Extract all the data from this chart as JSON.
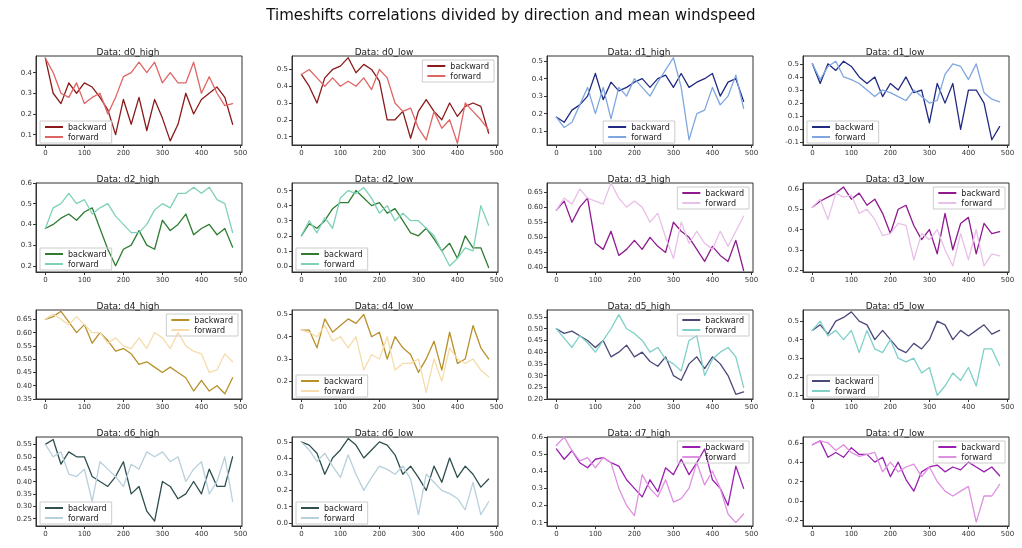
{
  "chart_data": [
    {
      "type": "line",
      "title": "Data: d0_high",
      "annotations": [
        "Timeshifts correlations divided by direction and mean windspeed"
      ],
      "legend": "bottom left",
      "grid": false,
      "x": [
        0,
        20,
        40,
        60,
        80,
        100,
        120,
        140,
        160,
        180,
        200,
        220,
        240,
        260,
        280,
        300,
        320,
        340,
        360,
        380,
        400,
        420,
        440,
        460,
        480
      ],
      "xlim": [
        -24,
        504
      ],
      "xticks": [
        0,
        100,
        200,
        300,
        400,
        500
      ],
      "ylim": [
        0.05,
        0.48
      ],
      "yticks": [
        0.1,
        0.2,
        0.3,
        0.4
      ],
      "series": [
        {
          "name": "backward",
          "color": "#8b1a1a",
          "values": [
            0.47,
            0.3,
            0.25,
            0.35,
            0.3,
            0.35,
            0.33,
            0.28,
            0.22,
            0.1,
            0.27,
            0.15,
            0.28,
            0.12,
            0.27,
            0.18,
            0.07,
            0.15,
            0.3,
            0.2,
            0.27,
            0.3,
            0.33,
            0.28,
            0.15
          ]
        },
        {
          "name": "forward",
          "color": "#e06666",
          "values": [
            0.47,
            0.4,
            0.3,
            0.28,
            0.35,
            0.25,
            0.28,
            0.3,
            0.2,
            0.28,
            0.38,
            0.4,
            0.45,
            0.4,
            0.45,
            0.35,
            0.4,
            0.35,
            0.35,
            0.45,
            0.3,
            0.38,
            0.3,
            0.24,
            0.25
          ]
        }
      ]
    },
    {
      "type": "line",
      "title": "Data: d0_low",
      "legend": "top right",
      "grid": false,
      "x": [
        0,
        20,
        40,
        60,
        80,
        100,
        120,
        140,
        160,
        180,
        200,
        220,
        240,
        260,
        280,
        300,
        320,
        340,
        360,
        380,
        400,
        420,
        440,
        460,
        480
      ],
      "xlim": [
        -24,
        504
      ],
      "xticks": [
        0,
        100,
        200,
        300,
        400,
        500
      ],
      "ylim": [
        0.05,
        0.58
      ],
      "yticks": [
        0.1,
        0.2,
        0.3,
        0.4,
        0.5
      ],
      "series": [
        {
          "name": "backward",
          "color": "#8b1a1a",
          "values": [
            0.47,
            0.4,
            0.3,
            0.45,
            0.5,
            0.52,
            0.57,
            0.48,
            0.53,
            0.5,
            0.43,
            0.2,
            0.2,
            0.25,
            0.09,
            0.25,
            0.32,
            0.25,
            0.2,
            0.3,
            0.22,
            0.28,
            0.3,
            0.28,
            0.12
          ]
        },
        {
          "name": "forward",
          "color": "#e06666",
          "values": [
            0.47,
            0.5,
            0.45,
            0.4,
            0.45,
            0.4,
            0.43,
            0.4,
            0.45,
            0.38,
            0.5,
            0.45,
            0.3,
            0.25,
            0.27,
            0.15,
            0.08,
            0.25,
            0.15,
            0.2,
            0.06,
            0.3,
            0.25,
            0.2,
            0.14
          ]
        }
      ]
    },
    {
      "type": "line",
      "title": "Data: d1_high",
      "legend": "bottom",
      "grid": false,
      "x": [
        0,
        20,
        40,
        60,
        80,
        100,
        120,
        140,
        160,
        180,
        200,
        220,
        240,
        260,
        280,
        300,
        320,
        340,
        360,
        380,
        400,
        420,
        440,
        460,
        480
      ],
      "xlim": [
        -24,
        504
      ],
      "xticks": [
        0,
        100,
        200,
        300,
        400,
        500
      ],
      "ylim": [
        0.02,
        0.53
      ],
      "yticks": [
        0.1,
        0.2,
        0.3,
        0.4,
        0.5
      ],
      "series": [
        {
          "name": "backward",
          "color": "#1f2a80",
          "values": [
            0.18,
            0.15,
            0.22,
            0.25,
            0.3,
            0.43,
            0.28,
            0.38,
            0.33,
            0.35,
            0.38,
            0.4,
            0.35,
            0.4,
            0.42,
            0.35,
            0.43,
            0.35,
            0.38,
            0.4,
            0.43,
            0.3,
            0.38,
            0.4,
            0.27
          ]
        },
        {
          "name": "forward",
          "color": "#7fa6e0",
          "values": [
            0.18,
            0.12,
            0.15,
            0.25,
            0.35,
            0.2,
            0.35,
            0.17,
            0.35,
            0.3,
            0.4,
            0.35,
            0.3,
            0.38,
            0.45,
            0.52,
            0.35,
            0.05,
            0.2,
            0.22,
            0.35,
            0.25,
            0.3,
            0.42,
            0.23
          ]
        }
      ]
    },
    {
      "type": "line",
      "title": "Data: d1_low",
      "legend": "bottom left",
      "grid": false,
      "x": [
        0,
        20,
        40,
        60,
        80,
        100,
        120,
        140,
        160,
        180,
        200,
        220,
        240,
        260,
        280,
        300,
        320,
        340,
        360,
        380,
        400,
        420,
        440,
        460,
        480
      ],
      "xlim": [
        -24,
        504
      ],
      "xticks": [
        0,
        100,
        200,
        300,
        400,
        500
      ],
      "ylim": [
        -0.12,
        0.56
      ],
      "yticks": [
        -0.1,
        {
          "value": 0,
          "label": "0.0"
        },
        0.1,
        0.2,
        0.3,
        0.4,
        0.5
      ],
      "series": [
        {
          "name": "backward",
          "color": "#1f2a80",
          "values": [
            0.5,
            0.35,
            0.5,
            0.45,
            0.52,
            0.48,
            0.4,
            0.35,
            0.4,
            0.25,
            0.35,
            0.3,
            0.4,
            0.28,
            0.3,
            0.05,
            0.35,
            0.2,
            0.35,
            0.0,
            0.3,
            0.3,
            0.2,
            -0.08,
            0.02
          ]
        },
        {
          "name": "forward",
          "color": "#7fa6e0",
          "values": [
            0.5,
            0.38,
            0.48,
            0.52,
            0.4,
            0.38,
            0.35,
            0.3,
            0.25,
            0.3,
            0.28,
            0.25,
            0.22,
            0.3,
            0.25,
            0.2,
            0.22,
            0.42,
            0.5,
            0.48,
            0.38,
            0.5,
            0.28,
            0.23,
            0.21
          ]
        }
      ]
    },
    {
      "type": "line",
      "title": "Data: d2_high",
      "legend": "bottom left",
      "grid": false,
      "x": [
        0,
        20,
        40,
        60,
        80,
        100,
        120,
        140,
        160,
        180,
        200,
        220,
        240,
        260,
        280,
        300,
        320,
        340,
        360,
        380,
        400,
        420,
        440,
        460,
        480
      ],
      "xlim": [
        -24,
        504
      ],
      "xticks": [
        0,
        100,
        200,
        300,
        400,
        500
      ],
      "ylim": [
        0.17,
        0.6
      ],
      "yticks": [
        0.2,
        0.3,
        0.4,
        0.5,
        0.6
      ],
      "series": [
        {
          "name": "backward",
          "color": "#2e7d32",
          "values": [
            0.38,
            0.4,
            0.43,
            0.45,
            0.42,
            0.46,
            0.48,
            0.38,
            0.28,
            0.2,
            0.28,
            0.3,
            0.37,
            0.3,
            0.28,
            0.42,
            0.37,
            0.4,
            0.45,
            0.35,
            0.38,
            0.4,
            0.35,
            0.38,
            0.29
          ]
        },
        {
          "name": "forward",
          "color": "#7fd1b9",
          "values": [
            0.38,
            0.48,
            0.5,
            0.55,
            0.5,
            0.52,
            0.45,
            0.48,
            0.5,
            0.44,
            0.4,
            0.36,
            0.36,
            0.4,
            0.47,
            0.5,
            0.48,
            0.55,
            0.55,
            0.58,
            0.55,
            0.58,
            0.52,
            0.5,
            0.36
          ]
        }
      ]
    },
    {
      "type": "line",
      "title": "Data: d2_low",
      "legend": "bottom left",
      "grid": false,
      "x": [
        0,
        20,
        40,
        60,
        80,
        100,
        120,
        140,
        160,
        180,
        200,
        220,
        240,
        260,
        280,
        300,
        320,
        340,
        360,
        380,
        400,
        420,
        440,
        460,
        480
      ],
      "xlim": [
        -24,
        504
      ],
      "xticks": [
        0,
        100,
        200,
        300,
        400,
        500
      ],
      "ylim": [
        -0.04,
        0.55
      ],
      "yticks": [
        {
          "value": 0,
          "label": "0.0"
        },
        0.1,
        0.2,
        0.3,
        0.4,
        0.5
      ],
      "series": [
        {
          "name": "backward",
          "color": "#2e7d32",
          "values": [
            0.2,
            0.28,
            0.25,
            0.3,
            0.38,
            0.42,
            0.42,
            0.5,
            0.45,
            0.4,
            0.42,
            0.35,
            0.38,
            0.3,
            0.22,
            0.2,
            0.25,
            0.18,
            0.1,
            0.15,
            0.05,
            0.2,
            0.12,
            0.12,
            -0.01
          ]
        },
        {
          "name": "forward",
          "color": "#7fd1b9",
          "values": [
            0.2,
            0.3,
            0.22,
            0.32,
            0.25,
            0.45,
            0.5,
            0.48,
            0.52,
            0.45,
            0.35,
            0.4,
            0.3,
            0.35,
            0.3,
            0.3,
            0.25,
            0.2,
            0.1,
            0.0,
            0.05,
            0.12,
            0.1,
            0.4,
            0.27
          ]
        }
      ]
    },
    {
      "type": "line",
      "title": "Data: d3_high",
      "legend": "top right",
      "grid": false,
      "x": [
        0,
        20,
        40,
        60,
        80,
        100,
        120,
        140,
        160,
        180,
        200,
        220,
        240,
        260,
        280,
        300,
        320,
        340,
        360,
        380,
        400,
        420,
        440,
        460,
        480
      ],
      "xlim": [
        -24,
        504
      ],
      "xticks": [
        0,
        100,
        200,
        300,
        400,
        500
      ],
      "ylim": [
        0.385,
        0.68
      ],
      "yticks": [
        {
          "value": 0.4,
          "label": "0.40"
        },
        {
          "value": 0.45,
          "label": "0.45"
        },
        {
          "value": 0.5,
          "label": "0.50"
        },
        {
          "value": 0.55,
          "label": "0.55"
        },
        {
          "value": 0.6,
          "label": "0.60"
        },
        {
          "value": 0.65,
          "label": "0.65"
        }
      ],
      "series": [
        {
          "name": "backward",
          "color": "#8e1a8e",
          "values": [
            0.59,
            0.62,
            0.55,
            0.6,
            0.63,
            0.48,
            0.46,
            0.52,
            0.44,
            0.46,
            0.49,
            0.46,
            0.5,
            0.47,
            0.45,
            0.55,
            0.52,
            0.5,
            0.46,
            0.42,
            0.47,
            0.44,
            0.42,
            0.49,
            0.39
          ]
        },
        {
          "name": "forward",
          "color": "#e8c0e8",
          "values": [
            0.59,
            0.63,
            0.61,
            0.66,
            0.63,
            0.62,
            0.61,
            0.68,
            0.63,
            0.6,
            0.62,
            0.6,
            0.55,
            0.58,
            0.5,
            0.43,
            0.55,
            0.48,
            0.52,
            0.48,
            0.46,
            0.52,
            0.47,
            0.52,
            0.57
          ]
        }
      ]
    },
    {
      "type": "line",
      "title": "Data: d3_low",
      "legend": "top right",
      "grid": false,
      "x": [
        0,
        20,
        40,
        60,
        80,
        100,
        120,
        140,
        160,
        180,
        200,
        220,
        240,
        260,
        280,
        300,
        320,
        340,
        360,
        380,
        400,
        420,
        440,
        460,
        480
      ],
      "xlim": [
        -24,
        504
      ],
      "xticks": [
        0,
        100,
        200,
        300,
        400,
        500
      ],
      "ylim": [
        0.19,
        0.63
      ],
      "yticks": [
        0.2,
        0.3,
        0.4,
        0.5,
        0.6
      ],
      "series": [
        {
          "name": "backward",
          "color": "#8e1a8e",
          "values": [
            0.51,
            0.54,
            0.56,
            0.58,
            0.61,
            0.55,
            0.58,
            0.52,
            0.55,
            0.48,
            0.38,
            0.5,
            0.52,
            0.42,
            0.35,
            0.4,
            0.28,
            0.48,
            0.3,
            0.43,
            0.46,
            0.28,
            0.43,
            0.38,
            0.39
          ]
        },
        {
          "name": "forward",
          "color": "#e8c0e8",
          "values": [
            0.51,
            0.55,
            0.45,
            0.58,
            0.56,
            0.57,
            0.48,
            0.5,
            0.45,
            0.37,
            0.38,
            0.43,
            0.42,
            0.25,
            0.38,
            0.35,
            0.4,
            0.3,
            0.22,
            0.38,
            0.25,
            0.4,
            0.22,
            0.28,
            0.27
          ]
        }
      ]
    },
    {
      "type": "line",
      "title": "Data: d4_high",
      "legend": "top right",
      "grid": false,
      "x": [
        0,
        20,
        40,
        60,
        80,
        100,
        120,
        140,
        160,
        180,
        200,
        220,
        240,
        260,
        280,
        300,
        320,
        340,
        360,
        380,
        400,
        420,
        440,
        460,
        480
      ],
      "xlim": [
        -24,
        504
      ],
      "xticks": [
        0,
        100,
        200,
        300,
        400,
        500
      ],
      "ylim": [
        0.35,
        0.685
      ],
      "yticks": [
        {
          "value": 0.35,
          "label": "0.35"
        },
        {
          "value": 0.4,
          "label": "0.40"
        },
        {
          "value": 0.45,
          "label": "0.45"
        },
        {
          "value": 0.5,
          "label": "0.50"
        },
        {
          "value": 0.55,
          "label": "0.55"
        },
        {
          "value": 0.6,
          "label": "0.60"
        },
        {
          "value": 0.65,
          "label": "0.65"
        }
      ],
      "series": [
        {
          "name": "backward",
          "color": "#b8902a",
          "values": [
            0.65,
            0.66,
            0.68,
            0.64,
            0.6,
            0.63,
            0.56,
            0.6,
            0.57,
            0.53,
            0.54,
            0.52,
            0.48,
            0.49,
            0.47,
            0.45,
            0.47,
            0.45,
            0.43,
            0.38,
            0.42,
            0.38,
            0.4,
            0.37,
            0.43
          ]
        },
        {
          "name": "forward",
          "color": "#f5dcaa",
          "values": [
            0.65,
            0.67,
            0.65,
            0.63,
            0.66,
            0.63,
            0.6,
            0.6,
            0.56,
            0.58,
            0.55,
            0.54,
            0.58,
            0.54,
            0.6,
            0.58,
            0.54,
            0.6,
            0.55,
            0.53,
            0.52,
            0.45,
            0.46,
            0.52,
            0.49
          ]
        }
      ]
    },
    {
      "type": "line",
      "title": "Data: d4_low",
      "legend": "bottom left",
      "grid": false,
      "x": [
        0,
        20,
        40,
        60,
        80,
        100,
        120,
        140,
        160,
        180,
        200,
        220,
        240,
        260,
        280,
        300,
        320,
        340,
        360,
        380,
        400,
        420,
        440,
        460,
        480
      ],
      "xlim": [
        -24,
        504
      ],
      "xticks": [
        0,
        100,
        200,
        300,
        400,
        500
      ],
      "ylim": [
        0.12,
        0.52
      ],
      "yticks": [
        0.2,
        0.3,
        0.4,
        0.5
      ],
      "series": [
        {
          "name": "backward",
          "color": "#b8902a",
          "values": [
            0.43,
            0.43,
            0.35,
            0.48,
            0.42,
            0.45,
            0.48,
            0.46,
            0.5,
            0.4,
            0.42,
            0.3,
            0.4,
            0.35,
            0.32,
            0.24,
            0.3,
            0.38,
            0.25,
            0.42,
            0.28,
            0.3,
            0.45,
            0.35,
            0.3
          ]
        },
        {
          "name": "forward",
          "color": "#f5dcaa",
          "values": [
            0.43,
            0.42,
            0.4,
            0.45,
            0.38,
            0.4,
            0.35,
            0.4,
            0.25,
            0.32,
            0.3,
            0.4,
            0.25,
            0.28,
            0.28,
            0.3,
            0.15,
            0.3,
            0.2,
            0.35,
            0.3,
            0.28,
            0.3,
            0.25,
            0.22
          ]
        }
      ]
    },
    {
      "type": "line",
      "title": "Data: d5_high",
      "legend": "top right",
      "grid": false,
      "x": [
        0,
        20,
        40,
        60,
        80,
        100,
        120,
        140,
        160,
        180,
        200,
        220,
        240,
        260,
        280,
        300,
        320,
        340,
        360,
        380,
        400,
        420,
        440,
        460,
        480
      ],
      "xlim": [
        -24,
        504
      ],
      "xticks": [
        0,
        100,
        200,
        300,
        400,
        500
      ],
      "ylim": [
        0.2,
        0.58
      ],
      "yticks": [
        {
          "value": 0.2,
          "label": "0.20"
        },
        {
          "value": 0.25,
          "label": "0.25"
        },
        {
          "value": 0.3,
          "label": "0.30"
        },
        {
          "value": 0.35,
          "label": "0.35"
        },
        {
          "value": 0.4,
          "label": "0.40"
        },
        {
          "value": 0.45,
          "label": "0.45"
        },
        {
          "value": 0.5,
          "label": "0.50"
        },
        {
          "value": 0.55,
          "label": "0.55"
        }
      ],
      "series": [
        {
          "name": "backward",
          "color": "#4a4a7a",
          "values": [
            0.5,
            0.48,
            0.49,
            0.47,
            0.45,
            0.42,
            0.45,
            0.38,
            0.4,
            0.43,
            0.38,
            0.4,
            0.36,
            0.34,
            0.38,
            0.3,
            0.28,
            0.35,
            0.38,
            0.33,
            0.38,
            0.35,
            0.3,
            0.22,
            0.23
          ]
        },
        {
          "name": "forward",
          "color": "#7fd0c8",
          "values": [
            0.5,
            0.46,
            0.42,
            0.47,
            0.44,
            0.4,
            0.45,
            0.5,
            0.56,
            0.5,
            0.48,
            0.45,
            0.4,
            0.42,
            0.37,
            0.35,
            0.32,
            0.45,
            0.47,
            0.3,
            0.37,
            0.4,
            0.42,
            0.38,
            0.25
          ]
        }
      ]
    },
    {
      "type": "line",
      "title": "Data: d5_low",
      "legend": "bottom left",
      "grid": false,
      "x": [
        0,
        20,
        40,
        60,
        80,
        100,
        120,
        140,
        160,
        180,
        200,
        220,
        240,
        260,
        280,
        300,
        320,
        340,
        360,
        380,
        400,
        420,
        440,
        460,
        480
      ],
      "xlim": [
        -24,
        504
      ],
      "xticks": [
        0,
        100,
        200,
        300,
        400,
        500
      ],
      "ylim": [
        0.08,
        0.56
      ],
      "yticks": [
        0.1,
        0.2,
        0.3,
        0.4,
        0.5
      ],
      "series": [
        {
          "name": "backward",
          "color": "#4a4a7a",
          "values": [
            0.45,
            0.48,
            0.43,
            0.5,
            0.52,
            0.55,
            0.5,
            0.48,
            0.4,
            0.45,
            0.4,
            0.35,
            0.33,
            0.38,
            0.35,
            0.4,
            0.5,
            0.48,
            0.4,
            0.45,
            0.42,
            0.45,
            0.48,
            0.43,
            0.45
          ]
        },
        {
          "name": "forward",
          "color": "#7fd0c8",
          "values": [
            0.45,
            0.5,
            0.42,
            0.45,
            0.4,
            0.45,
            0.33,
            0.45,
            0.35,
            0.33,
            0.4,
            0.3,
            0.28,
            0.3,
            0.22,
            0.25,
            0.1,
            0.15,
            0.22,
            0.18,
            0.25,
            0.15,
            0.35,
            0.35,
            0.26
          ]
        }
      ]
    },
    {
      "type": "line",
      "title": "Data: d6_high",
      "legend": "bottom left",
      "grid": false,
      "x": [
        0,
        20,
        40,
        60,
        80,
        100,
        120,
        140,
        160,
        180,
        200,
        220,
        240,
        260,
        280,
        300,
        320,
        340,
        360,
        380,
        400,
        420,
        440,
        460,
        480
      ],
      "xlim": [
        -24,
        504
      ],
      "xticks": [
        0,
        100,
        200,
        300,
        400,
        500
      ],
      "ylim": [
        0.22,
        0.58
      ],
      "yticks": [
        {
          "value": 0.25,
          "label": "0.25"
        },
        {
          "value": 0.3,
          "label": "0.30"
        },
        {
          "value": 0.35,
          "label": "0.35"
        },
        {
          "value": 0.4,
          "label": "0.40"
        },
        {
          "value": 0.45,
          "label": "0.45"
        },
        {
          "value": 0.5,
          "label": "0.50"
        },
        {
          "value": 0.55,
          "label": "0.55"
        }
      ],
      "series": [
        {
          "name": "backward",
          "color": "#2f4f4f",
          "values": [
            0.55,
            0.57,
            0.47,
            0.52,
            0.5,
            0.5,
            0.42,
            0.4,
            0.38,
            0.42,
            0.48,
            0.35,
            0.38,
            0.28,
            0.24,
            0.4,
            0.38,
            0.33,
            0.35,
            0.4,
            0.35,
            0.45,
            0.38,
            0.38,
            0.5
          ]
        },
        {
          "name": "forward",
          "color": "#b8d0dc",
          "values": [
            0.55,
            0.5,
            0.52,
            0.43,
            0.42,
            0.45,
            0.32,
            0.48,
            0.45,
            0.42,
            0.38,
            0.47,
            0.45,
            0.52,
            0.5,
            0.52,
            0.48,
            0.5,
            0.4,
            0.45,
            0.48,
            0.35,
            0.4,
            0.5,
            0.32
          ]
        }
      ]
    },
    {
      "type": "line",
      "title": "Data: d6_low",
      "legend": "bottom left",
      "grid": false,
      "x": [
        0,
        20,
        40,
        60,
        80,
        100,
        120,
        140,
        160,
        180,
        200,
        220,
        240,
        260,
        280,
        300,
        320,
        340,
        360,
        380,
        400,
        420,
        440,
        460,
        480
      ],
      "xlim": [
        -24,
        504
      ],
      "xticks": [
        0,
        100,
        200,
        300,
        400,
        500
      ],
      "ylim": [
        -0.02,
        0.53
      ],
      "yticks": [
        {
          "value": 0,
          "label": "0.0"
        },
        0.1,
        0.2,
        0.3,
        0.4,
        0.5
      ],
      "series": [
        {
          "name": "backward",
          "color": "#2f4f4f",
          "values": [
            0.5,
            0.48,
            0.43,
            0.3,
            0.4,
            0.45,
            0.52,
            0.48,
            0.4,
            0.45,
            0.5,
            0.48,
            0.42,
            0.3,
            0.35,
            0.28,
            0.2,
            0.35,
            0.25,
            0.4,
            0.28,
            0.35,
            0.3,
            0.22,
            0.27
          ]
        },
        {
          "name": "forward",
          "color": "#b8d0dc",
          "values": [
            0.5,
            0.45,
            0.38,
            0.43,
            0.35,
            0.28,
            0.42,
            0.3,
            0.2,
            0.28,
            0.35,
            0.33,
            0.3,
            0.35,
            0.27,
            0.05,
            0.3,
            0.25,
            0.2,
            0.18,
            0.15,
            0.08,
            0.25,
            0.05,
            0.13
          ]
        }
      ]
    },
    {
      "type": "line",
      "title": "Data: d7_high",
      "legend": "top right",
      "grid": false,
      "x": [
        0,
        20,
        40,
        60,
        80,
        100,
        120,
        140,
        160,
        180,
        200,
        220,
        240,
        260,
        280,
        300,
        320,
        340,
        360,
        380,
        400,
        420,
        440,
        460,
        480
      ],
      "xlim": [
        -24,
        504
      ],
      "xticks": [
        0,
        100,
        200,
        300,
        400,
        500
      ],
      "ylim": [
        0.08,
        0.6
      ],
      "yticks": [
        0.1,
        0.2,
        0.3,
        0.4,
        0.5,
        0.6
      ],
      "series": [
        {
          "name": "backward",
          "color": "#9a1fb0",
          "values": [
            0.53,
            0.47,
            0.52,
            0.45,
            0.42,
            0.47,
            0.48,
            0.45,
            0.43,
            0.35,
            0.3,
            0.25,
            0.35,
            0.28,
            0.42,
            0.38,
            0.47,
            0.38,
            0.45,
            0.53,
            0.35,
            0.3,
            0.2,
            0.43,
            0.3
          ]
        },
        {
          "name": "forward",
          "color": "#e090e0",
          "values": [
            0.55,
            0.6,
            0.52,
            0.46,
            0.48,
            0.42,
            0.48,
            0.45,
            0.3,
            0.2,
            0.14,
            0.38,
            0.3,
            0.25,
            0.35,
            0.22,
            0.24,
            0.3,
            0.45,
            0.32,
            0.4,
            0.3,
            0.15,
            0.1,
            0.15
          ]
        }
      ]
    },
    {
      "type": "line",
      "title": "Data: d7_low",
      "legend": "top right",
      "grid": false,
      "x": [
        0,
        20,
        40,
        60,
        80,
        100,
        120,
        140,
        160,
        180,
        200,
        220,
        240,
        260,
        280,
        300,
        320,
        340,
        360,
        380,
        400,
        420,
        440,
        460,
        480
      ],
      "xlim": [
        -24,
        504
      ],
      "xticks": [
        0,
        100,
        200,
        300,
        400,
        500
      ],
      "ylim": [
        -0.26,
        0.66
      ],
      "yticks": [
        -0.2,
        {
          "value": 0,
          "label": "0.0"
        },
        0.2,
        0.4,
        0.6
      ],
      "series": [
        {
          "name": "backward",
          "color": "#9a1fb0",
          "values": [
            0.58,
            0.62,
            0.45,
            0.5,
            0.45,
            0.55,
            0.48,
            0.48,
            0.4,
            0.45,
            0.25,
            0.4,
            0.22,
            0.1,
            0.3,
            0.35,
            0.37,
            0.3,
            0.35,
            0.32,
            0.4,
            0.35,
            0.3,
            0.35,
            0.26
          ]
        },
        {
          "name": "forward",
          "color": "#e090e0",
          "values": [
            0.58,
            0.62,
            0.6,
            0.52,
            0.58,
            0.5,
            0.46,
            0.48,
            0.5,
            0.3,
            0.4,
            0.3,
            0.35,
            0.38,
            0.25,
            0.35,
            0.2,
            0.1,
            0.05,
            0.1,
            0.15,
            -0.22,
            0.05,
            0.05,
            0.17
          ]
        }
      ]
    }
  ]
}
